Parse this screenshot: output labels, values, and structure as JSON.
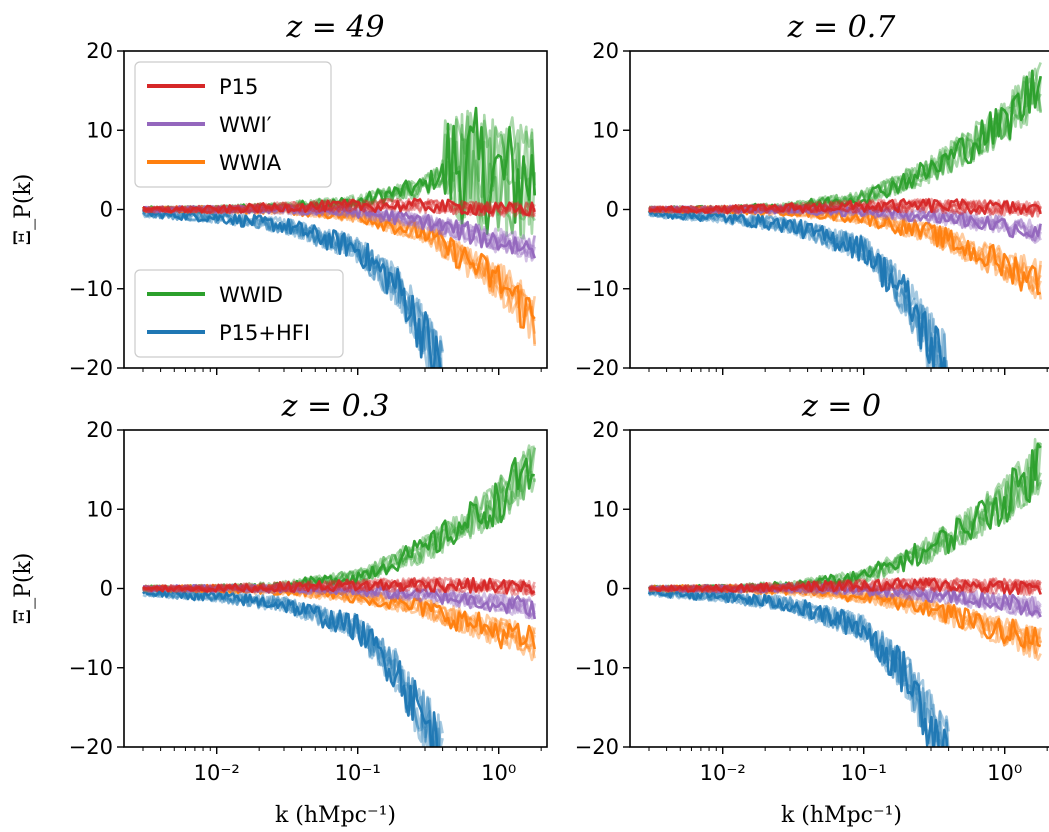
{
  "chart_data": {
    "type": "line",
    "x_scale": "log",
    "xlim": [
      0.0022,
      2.2
    ],
    "ylim": [
      -20,
      20
    ],
    "xlabel": "k (hMpc⁻¹)",
    "ylabel": "Ξ_P(k)",
    "x_tick_labels": [
      "10⁻²",
      "10⁻¹",
      "10⁰"
    ],
    "x_ticks": [
      0.01,
      0.1,
      1.0
    ],
    "y_ticks": [
      -20,
      -10,
      0,
      10,
      20
    ],
    "y_tick_labels": [
      "−20",
      "−10",
      "0",
      "10",
      "20"
    ],
    "series_colors": {
      "P15": "#d62728",
      "WWI′": "#9467bd",
      "WWIA": "#ff7f0e",
      "WWID": "#2ca02c",
      "P15+HFI": "#1f77b4"
    },
    "legend": [
      {
        "group": "top-left",
        "entries": [
          "P15",
          "WWI′",
          "WWIA"
        ]
      },
      {
        "group": "bottom-left",
        "entries": [
          "WWID",
          "P15+HFI"
        ]
      }
    ],
    "panels": [
      {
        "title": "z = 49",
        "series": [
          {
            "name": "P15",
            "x": [
              0.003,
              0.01,
              0.03,
              0.1,
              0.3,
              1.0,
              1.8
            ],
            "y": [
              0,
              0,
              0.3,
              0.5,
              0.5,
              0,
              0
            ]
          },
          {
            "name": "WWI′",
            "x": [
              0.003,
              0.01,
              0.03,
              0.1,
              0.3,
              1.0,
              1.8
            ],
            "y": [
              0,
              0,
              0,
              -0.3,
              -1.5,
              -4,
              -5
            ]
          },
          {
            "name": "WWIA",
            "x": [
              0.003,
              0.01,
              0.03,
              0.1,
              0.3,
              1.0,
              1.8
            ],
            "y": [
              0,
              0,
              0,
              -0.8,
              -3,
              -9,
              -14
            ]
          },
          {
            "name": "WWID",
            "x": [
              0.003,
              0.01,
              0.03,
              0.1,
              0.3,
              0.5,
              1.0,
              1.8
            ],
            "y": [
              0,
              0,
              0.3,
              1,
              3,
              6,
              4,
              4
            ]
          },
          {
            "name": "P15+HFI",
            "x": [
              0.003,
              0.01,
              0.03,
              0.1,
              0.2,
              0.3,
              0.4
            ],
            "y": [
              -0.5,
              -1,
              -2,
              -5,
              -10,
              -16,
              -21
            ]
          }
        ]
      },
      {
        "title": "z = 0.7",
        "series": [
          {
            "name": "P15",
            "x": [
              0.003,
              0.01,
              0.03,
              0.1,
              0.3,
              1.0,
              1.8
            ],
            "y": [
              0,
              0,
              0.2,
              0.4,
              0.5,
              0.2,
              0
            ]
          },
          {
            "name": "WWI′",
            "x": [
              0.003,
              0.01,
              0.03,
              0.1,
              0.3,
              1.0,
              1.8
            ],
            "y": [
              0,
              0,
              0,
              -0.2,
              -0.8,
              -2,
              -3
            ]
          },
          {
            "name": "WWIA",
            "x": [
              0.003,
              0.01,
              0.03,
              0.1,
              0.3,
              1.0,
              1.8
            ],
            "y": [
              0,
              0,
              -0.2,
              -1,
              -3,
              -7,
              -9
            ]
          },
          {
            "name": "WWID",
            "x": [
              0.003,
              0.01,
              0.03,
              0.1,
              0.3,
              1.0,
              1.8
            ],
            "y": [
              0,
              0,
              0.3,
              1.5,
              5,
              11,
              16
            ]
          },
          {
            "name": "P15+HFI",
            "x": [
              0.003,
              0.01,
              0.03,
              0.1,
              0.2,
              0.3,
              0.4
            ],
            "y": [
              -0.5,
              -1,
              -2,
              -5,
              -11,
              -17,
              -21
            ]
          }
        ]
      },
      {
        "title": "z = 0.3",
        "series": [
          {
            "name": "P15",
            "x": [
              0.003,
              0.01,
              0.03,
              0.1,
              0.3,
              1.0,
              1.8
            ],
            "y": [
              0,
              0,
              0.2,
              0.4,
              0.5,
              0.3,
              0
            ]
          },
          {
            "name": "WWI′",
            "x": [
              0.003,
              0.01,
              0.03,
              0.1,
              0.3,
              1.0,
              1.8
            ],
            "y": [
              0,
              0,
              0,
              -0.2,
              -0.8,
              -1.8,
              -2.5
            ]
          },
          {
            "name": "WWIA",
            "x": [
              0.003,
              0.01,
              0.03,
              0.1,
              0.3,
              1.0,
              1.8
            ],
            "y": [
              0,
              0,
              -0.2,
              -1,
              -2.5,
              -5.5,
              -7
            ]
          },
          {
            "name": "WWID",
            "x": [
              0.003,
              0.01,
              0.03,
              0.1,
              0.3,
              1.0,
              1.8
            ],
            "y": [
              0,
              0,
              0.3,
              1.5,
              5,
              11,
              16
            ]
          },
          {
            "name": "P15+HFI",
            "x": [
              0.003,
              0.01,
              0.03,
              0.1,
              0.2,
              0.3,
              0.4
            ],
            "y": [
              -0.5,
              -1,
              -2,
              -5,
              -11,
              -17,
              -21
            ]
          }
        ]
      },
      {
        "title": "z = 0",
        "series": [
          {
            "name": "P15",
            "x": [
              0.003,
              0.01,
              0.03,
              0.1,
              0.3,
              1.0,
              1.8
            ],
            "y": [
              0,
              0,
              0.2,
              0.4,
              0.5,
              0.3,
              0
            ]
          },
          {
            "name": "WWI′",
            "x": [
              0.003,
              0.01,
              0.03,
              0.1,
              0.3,
              1.0,
              1.8
            ],
            "y": [
              0,
              0,
              0,
              -0.2,
              -0.8,
              -1.8,
              -2.5
            ]
          },
          {
            "name": "WWIA",
            "x": [
              0.003,
              0.01,
              0.03,
              0.1,
              0.3,
              1.0,
              1.8
            ],
            "y": [
              0,
              0,
              -0.2,
              -1,
              -2.5,
              -5.5,
              -7
            ]
          },
          {
            "name": "WWID",
            "x": [
              0.003,
              0.01,
              0.03,
              0.1,
              0.3,
              1.0,
              1.8
            ],
            "y": [
              0,
              0,
              0.3,
              1.5,
              5,
              11,
              16
            ]
          },
          {
            "name": "P15+HFI",
            "x": [
              0.003,
              0.01,
              0.03,
              0.1,
              0.2,
              0.3,
              0.4
            ],
            "y": [
              -0.5,
              -1,
              -2,
              -5,
              -11,
              -17,
              -21
            ]
          }
        ]
      }
    ]
  }
}
